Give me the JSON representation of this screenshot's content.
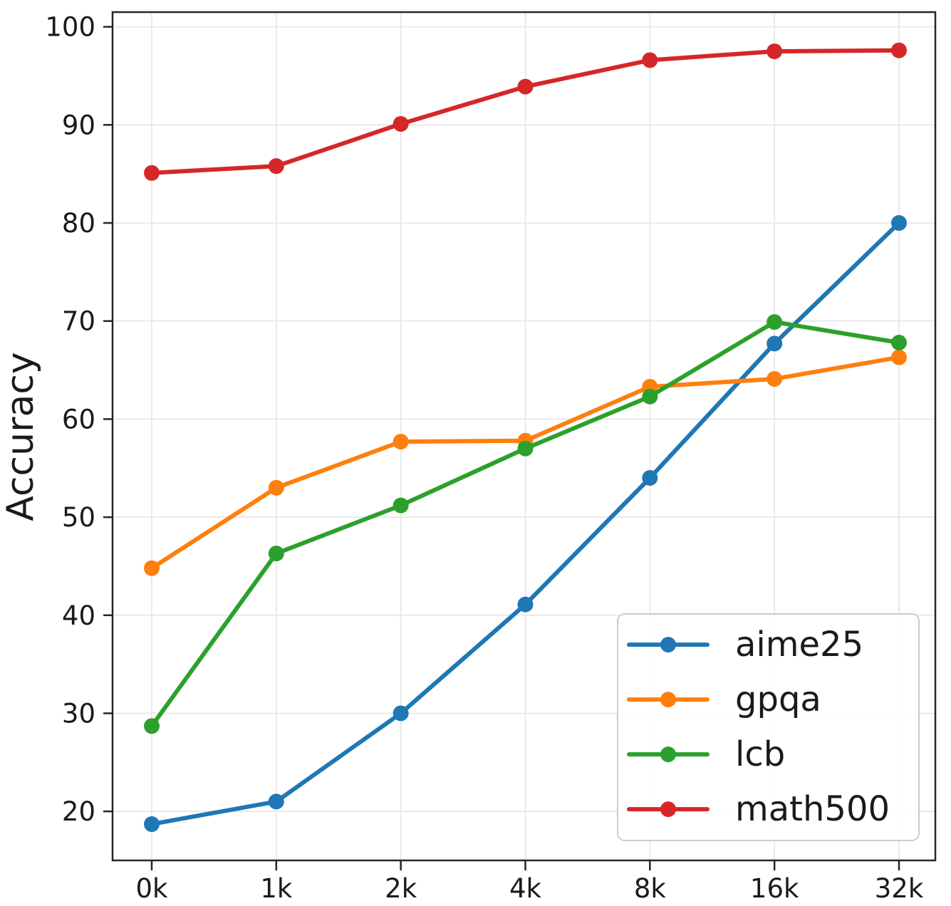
{
  "chart_data": {
    "type": "line",
    "title": "",
    "xlabel": "",
    "ylabel": "Accuracy",
    "categories": [
      "0k",
      "1k",
      "2k",
      "4k",
      "8k",
      "16k",
      "32k"
    ],
    "y_ticks": [
      20,
      30,
      40,
      50,
      60,
      70,
      80,
      90,
      100
    ],
    "ylim": [
      15.0,
      101.5
    ],
    "grid": true,
    "legend_position": "lower right",
    "series": [
      {
        "name": "aime25",
        "color": "#1f77b4",
        "marker": "circle",
        "values": [
          18.7,
          21.0,
          30.0,
          41.1,
          54.0,
          67.7,
          80.0
        ]
      },
      {
        "name": "gpqa",
        "color": "#ff7f0e",
        "marker": "circle",
        "values": [
          44.8,
          53.0,
          57.7,
          57.8,
          63.3,
          64.1,
          66.3
        ]
      },
      {
        "name": "lcb",
        "color": "#2ca02c",
        "marker": "circle",
        "values": [
          28.7,
          46.3,
          51.2,
          57.0,
          62.3,
          69.9,
          67.8
        ]
      },
      {
        "name": "math500",
        "color": "#d62728",
        "marker": "circle",
        "values": [
          85.1,
          85.8,
          90.1,
          93.9,
          96.6,
          97.5,
          97.6
        ]
      }
    ],
    "colors": {
      "grid": "#e7e7e7",
      "spine": "#262626",
      "legend_border": "#cccccc",
      "legend_fill": "#ffffff"
    }
  }
}
